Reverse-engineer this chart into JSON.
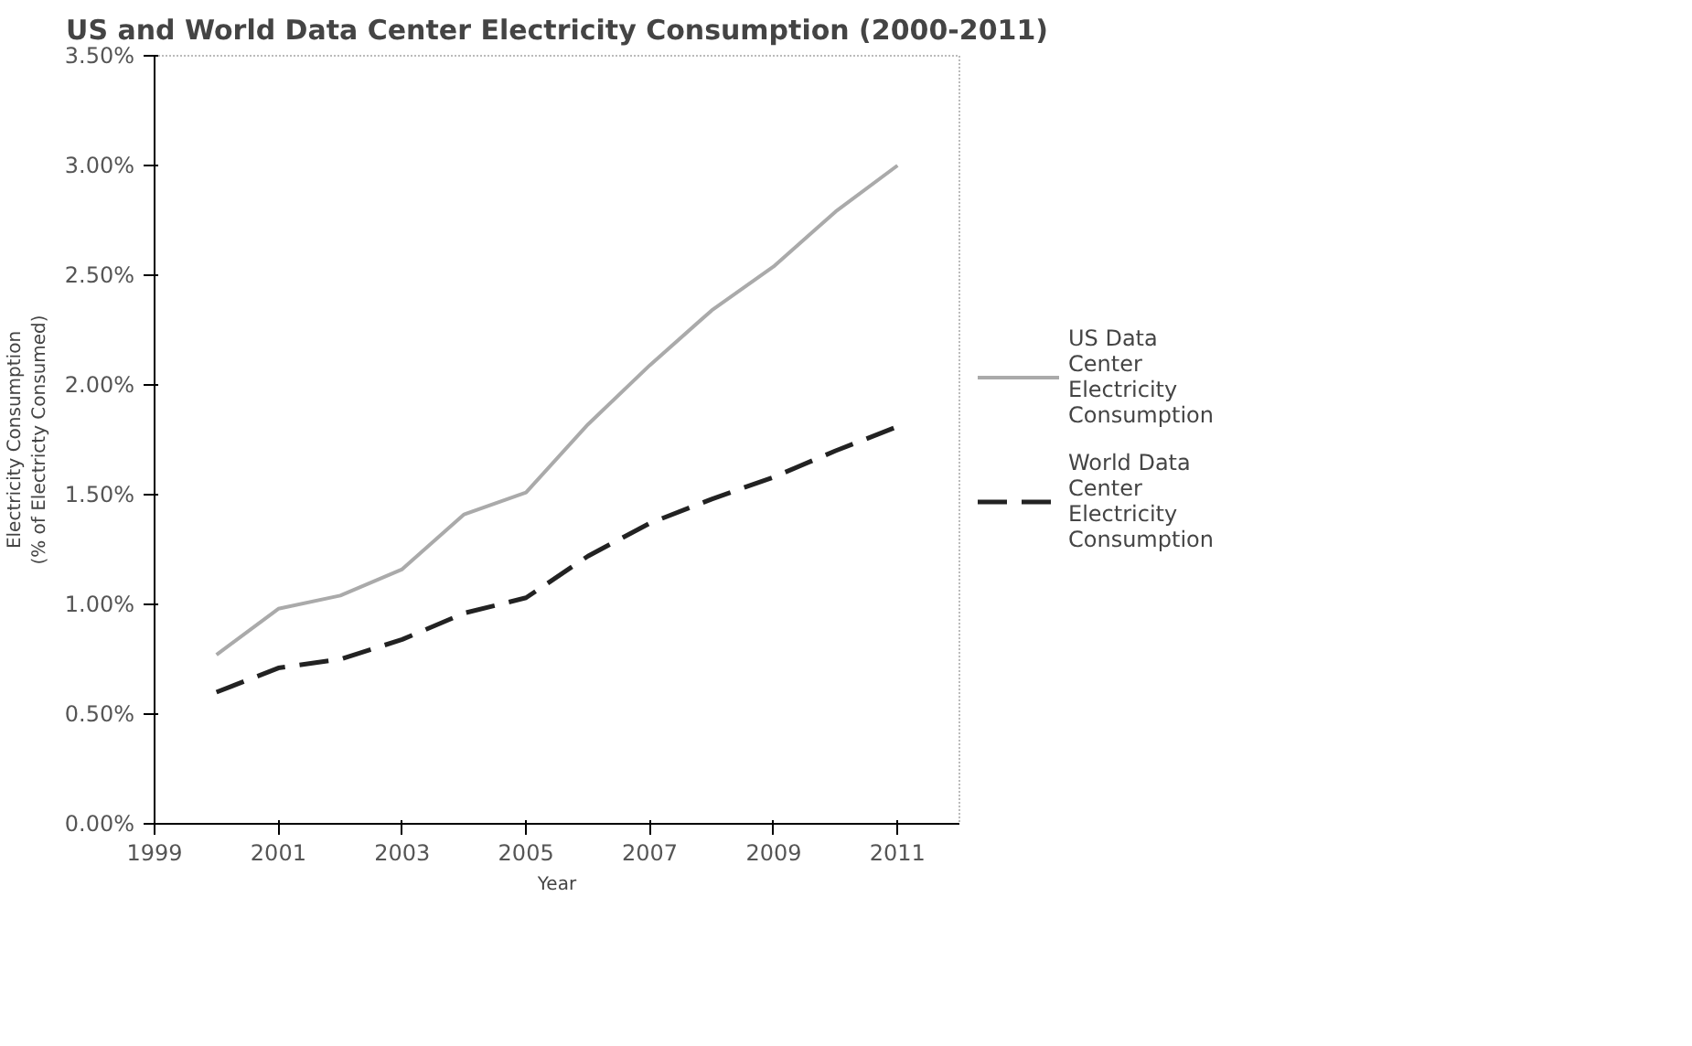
{
  "chart_data": {
    "type": "line",
    "title": "US and World Data Center Electricity Consumption (2000-2011)",
    "xlabel": "Year",
    "ylabel": "Electricity Consumption\n(% of Electricty Consumed)",
    "x": [
      2000,
      2001,
      2002,
      2003,
      2004,
      2005,
      2006,
      2007,
      2008,
      2009,
      2010,
      2011
    ],
    "series": [
      {
        "name": "US Data Center Electricity Consumption",
        "color": "#aaaaaa",
        "line_style": "solid",
        "values": [
          0.77,
          0.98,
          1.04,
          1.16,
          1.41,
          1.51,
          1.82,
          2.09,
          2.34,
          2.54,
          2.79,
          3.0
        ]
      },
      {
        "name": "World Data Center Electricity Consumption",
        "color": "#222222",
        "line_style": "dashed",
        "values": [
          0.6,
          0.71,
          0.75,
          0.84,
          0.96,
          1.03,
          1.22,
          1.37,
          1.48,
          1.58,
          1.7,
          1.81
        ]
      }
    ],
    "xlim": [
      1999,
      2012
    ],
    "xticks": [
      1999,
      2001,
      2003,
      2005,
      2007,
      2009,
      2011
    ],
    "ylim": [
      0,
      3.5
    ],
    "yticks": [
      {
        "value": 0,
        "label": "0.00%"
      },
      {
        "value": 0.5,
        "label": "0.50%"
      },
      {
        "value": 1,
        "label": "1.00%"
      },
      {
        "value": 1.5,
        "label": "1.50%"
      },
      {
        "value": 2,
        "label": "2.00%"
      },
      {
        "value": 2.5,
        "label": "2.50%"
      },
      {
        "value": 3,
        "label": "3.00%"
      },
      {
        "value": 3.5,
        "label": "3.50%"
      }
    ],
    "grid": false,
    "legend": "right",
    "marker": "none"
  }
}
